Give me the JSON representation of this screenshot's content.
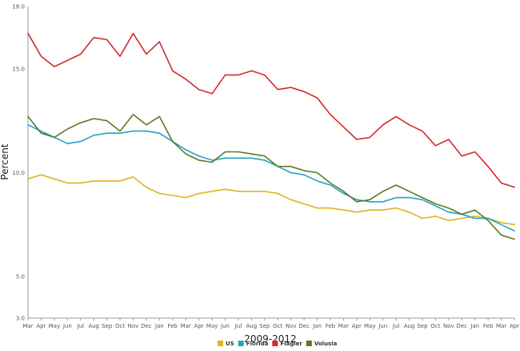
{
  "chart_data": {
    "type": "line",
    "title": "",
    "xlabel": "2009-2012",
    "ylabel": "Percent",
    "ylim": [
      3.0,
      18.0
    ],
    "yticks": [
      3.0,
      5.0,
      10.0,
      15.0,
      18.0
    ],
    "grid": false,
    "legend_position": "bottom-center",
    "categories": [
      "Mar",
      "Apr",
      "May",
      "Jun",
      "Jul",
      "Aug",
      "Sep",
      "Oct",
      "Nov",
      "Dec",
      "Jan",
      "Feb",
      "Mar",
      "Apr",
      "May",
      "Jun",
      "Jul",
      "Aug",
      "Sep",
      "Oct",
      "Nov",
      "Dec",
      "Jan",
      "Feb",
      "Mar",
      "Apr",
      "May",
      "Jun",
      "Jul",
      "Aug",
      "Sep",
      "Oct",
      "Nov",
      "Dec",
      "Jan",
      "Feb",
      "Mar",
      "Apr"
    ],
    "series": [
      {
        "name": "US",
        "color": "#e3b21f",
        "values": [
          9.7,
          9.9,
          9.7,
          9.5,
          9.5,
          9.6,
          9.6,
          9.6,
          9.8,
          9.3,
          9.0,
          8.9,
          8.8,
          9.0,
          9.1,
          9.2,
          9.1,
          9.1,
          9.1,
          9.0,
          8.7,
          8.5,
          8.3,
          8.3,
          8.2,
          8.1,
          8.2,
          8.2,
          8.3,
          8.1,
          7.8,
          7.9,
          7.7,
          7.8,
          7.9,
          7.8,
          7.6,
          7.5
        ]
      },
      {
        "name": "Florida",
        "color": "#22a3c9",
        "values": [
          12.3,
          12.0,
          11.7,
          11.4,
          11.5,
          11.8,
          11.9,
          11.9,
          12.0,
          12.0,
          11.9,
          11.5,
          11.1,
          10.8,
          10.6,
          10.7,
          10.7,
          10.7,
          10.6,
          10.3,
          10.0,
          9.9,
          9.6,
          9.4,
          9.0,
          8.7,
          8.6,
          8.6,
          8.8,
          8.8,
          8.7,
          8.4,
          8.1,
          8.0,
          7.8,
          7.8,
          7.5,
          7.2
        ]
      },
      {
        "name": "Flagler",
        "color": "#d42a2a",
        "values": [
          16.7,
          15.6,
          15.1,
          15.4,
          15.7,
          16.5,
          16.4,
          15.6,
          16.7,
          15.7,
          16.3,
          14.9,
          14.5,
          14.0,
          13.8,
          14.7,
          14.7,
          14.9,
          14.7,
          14.0,
          14.1,
          13.9,
          13.6,
          12.8,
          12.2,
          11.6,
          11.7,
          12.3,
          12.7,
          12.3,
          12.0,
          11.3,
          11.6,
          10.8,
          11.0,
          10.3,
          9.5,
          9.3
        ]
      },
      {
        "name": "Volusia",
        "color": "#5a7a24",
        "values": [
          12.7,
          11.9,
          11.7,
          12.1,
          12.4,
          12.6,
          12.5,
          12.0,
          12.8,
          12.3,
          12.7,
          11.5,
          10.9,
          10.6,
          10.5,
          11.0,
          11.0,
          10.9,
          10.8,
          10.3,
          10.3,
          10.1,
          10.0,
          9.5,
          9.1,
          8.6,
          8.7,
          9.1,
          9.4,
          9.1,
          8.8,
          8.5,
          8.3,
          8.0,
          8.2,
          7.7,
          7.0,
          6.8
        ]
      }
    ]
  }
}
